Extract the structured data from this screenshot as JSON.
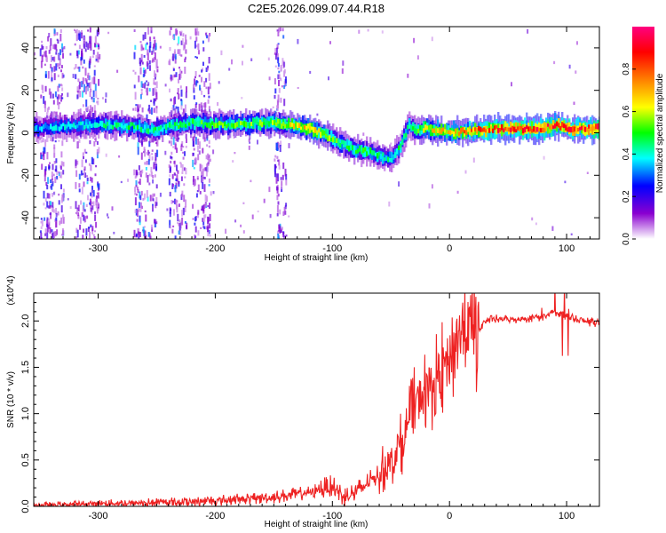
{
  "title": "C2E5.2026.099.07.44.R18",
  "chart_data": [
    {
      "type": "heatmap",
      "name": "spectrogram",
      "title": "C2E5.2026.099.07.44.R18",
      "xlabel": "Height of straight line (km)",
      "ylabel": "Frequency (Hz)",
      "xlim": [
        -355,
        128
      ],
      "ylim": [
        -50,
        50
      ],
      "xticks": [
        -300,
        -200,
        -100,
        0,
        100
      ],
      "xtick_labels": [
        "-300",
        "-200",
        "-100",
        "0",
        "100"
      ],
      "yticks": [
        -40,
        -20,
        0,
        20,
        40
      ],
      "ytick_labels": [
        "-40",
        "-20",
        "0",
        "20",
        "40"
      ],
      "colorbar": {
        "label": "Normalized spectral amplitude",
        "range": [
          0,
          1
        ],
        "ticks": [
          0.0,
          0.2,
          0.4,
          0.6,
          0.8
        ],
        "tick_labels": [
          "0.0",
          "0.2",
          "0.4",
          "0.6",
          "0.8"
        ],
        "colors": [
          "#ffffff",
          "#8a00d0",
          "#0000ff",
          "#00ffff",
          "#00ff00",
          "#ffff00",
          "#ff8000",
          "#ff0000",
          "#ff0080"
        ]
      },
      "ridge_center_hz": {
        "x": [
          -355,
          -330,
          -300,
          -270,
          -255,
          -240,
          -220,
          -200,
          -180,
          -160,
          -140,
          -120,
          -100,
          -90,
          -80,
          -70,
          -60,
          -50,
          -45,
          -40,
          -35,
          -30,
          -20,
          -10,
          0,
          20,
          40,
          60,
          80,
          90,
          100,
          128
        ],
        "y": [
          2,
          3,
          4,
          3,
          1,
          3,
          5,
          4,
          4,
          5,
          4,
          2,
          -3,
          -6,
          -8,
          -9,
          -11,
          -12,
          -8,
          -3,
          4,
          1,
          2,
          1,
          0,
          1,
          2,
          2,
          2,
          4,
          2,
          2
        ]
      },
      "ridge_peak_amplitude": {
        "x": [
          -355,
          -300,
          -250,
          -200,
          -150,
          -120,
          -100,
          -70,
          -50,
          -30,
          -10,
          0,
          20,
          60,
          100,
          128
        ],
        "y": [
          0.35,
          0.45,
          0.5,
          0.55,
          0.6,
          0.75,
          0.55,
          0.5,
          0.45,
          0.55,
          0.75,
          0.7,
          0.85,
          0.95,
          0.9,
          0.95
        ]
      },
      "noise_bands_km": [
        [
          -350,
          -330
        ],
        [
          -320,
          -300
        ],
        [
          -270,
          -250
        ],
        [
          -240,
          -225
        ],
        [
          -220,
          -205
        ],
        [
          -150,
          -140
        ]
      ]
    },
    {
      "type": "line",
      "name": "snr",
      "title": "",
      "xlabel": "Height of straight line (km)",
      "ylabel": "SNR (10 * v/v)",
      "multiplier_label": "(x10^4)",
      "xlim": [
        -355,
        128
      ],
      "ylim": [
        0,
        2.3
      ],
      "xticks": [
        -300,
        -200,
        -100,
        0,
        100
      ],
      "xtick_labels": [
        "-300",
        "-200",
        "-100",
        "0",
        "100"
      ],
      "yticks": [
        0.0,
        0.5,
        1.0,
        1.5,
        2.0
      ],
      "ytick_labels": [
        "0.0",
        "0.5",
        "1.0",
        "1.5",
        "2.0"
      ],
      "series": [
        {
          "name": "SNR",
          "color": "#ee2222",
          "x": [
            -355,
            -300,
            -250,
            -200,
            -150,
            -120,
            -100,
            -90,
            -80,
            -70,
            -60,
            -50,
            -40,
            -35,
            -30,
            -25,
            -20,
            -15,
            -10,
            -5,
            0,
            5,
            10,
            15,
            20,
            25,
            30,
            40,
            60,
            80,
            90,
            100,
            110,
            128
          ],
          "y": [
            0.01,
            0.03,
            0.04,
            0.06,
            0.1,
            0.15,
            0.22,
            0.1,
            0.15,
            0.25,
            0.35,
            0.5,
            0.7,
            0.9,
            1.1,
            1.2,
            1.25,
            1.3,
            1.4,
            1.5,
            1.6,
            1.75,
            1.9,
            1.95,
            1.85,
            1.9,
            2.0,
            2.02,
            2.02,
            2.05,
            2.1,
            2.05,
            2.0,
            1.98
          ]
        }
      ]
    }
  ]
}
